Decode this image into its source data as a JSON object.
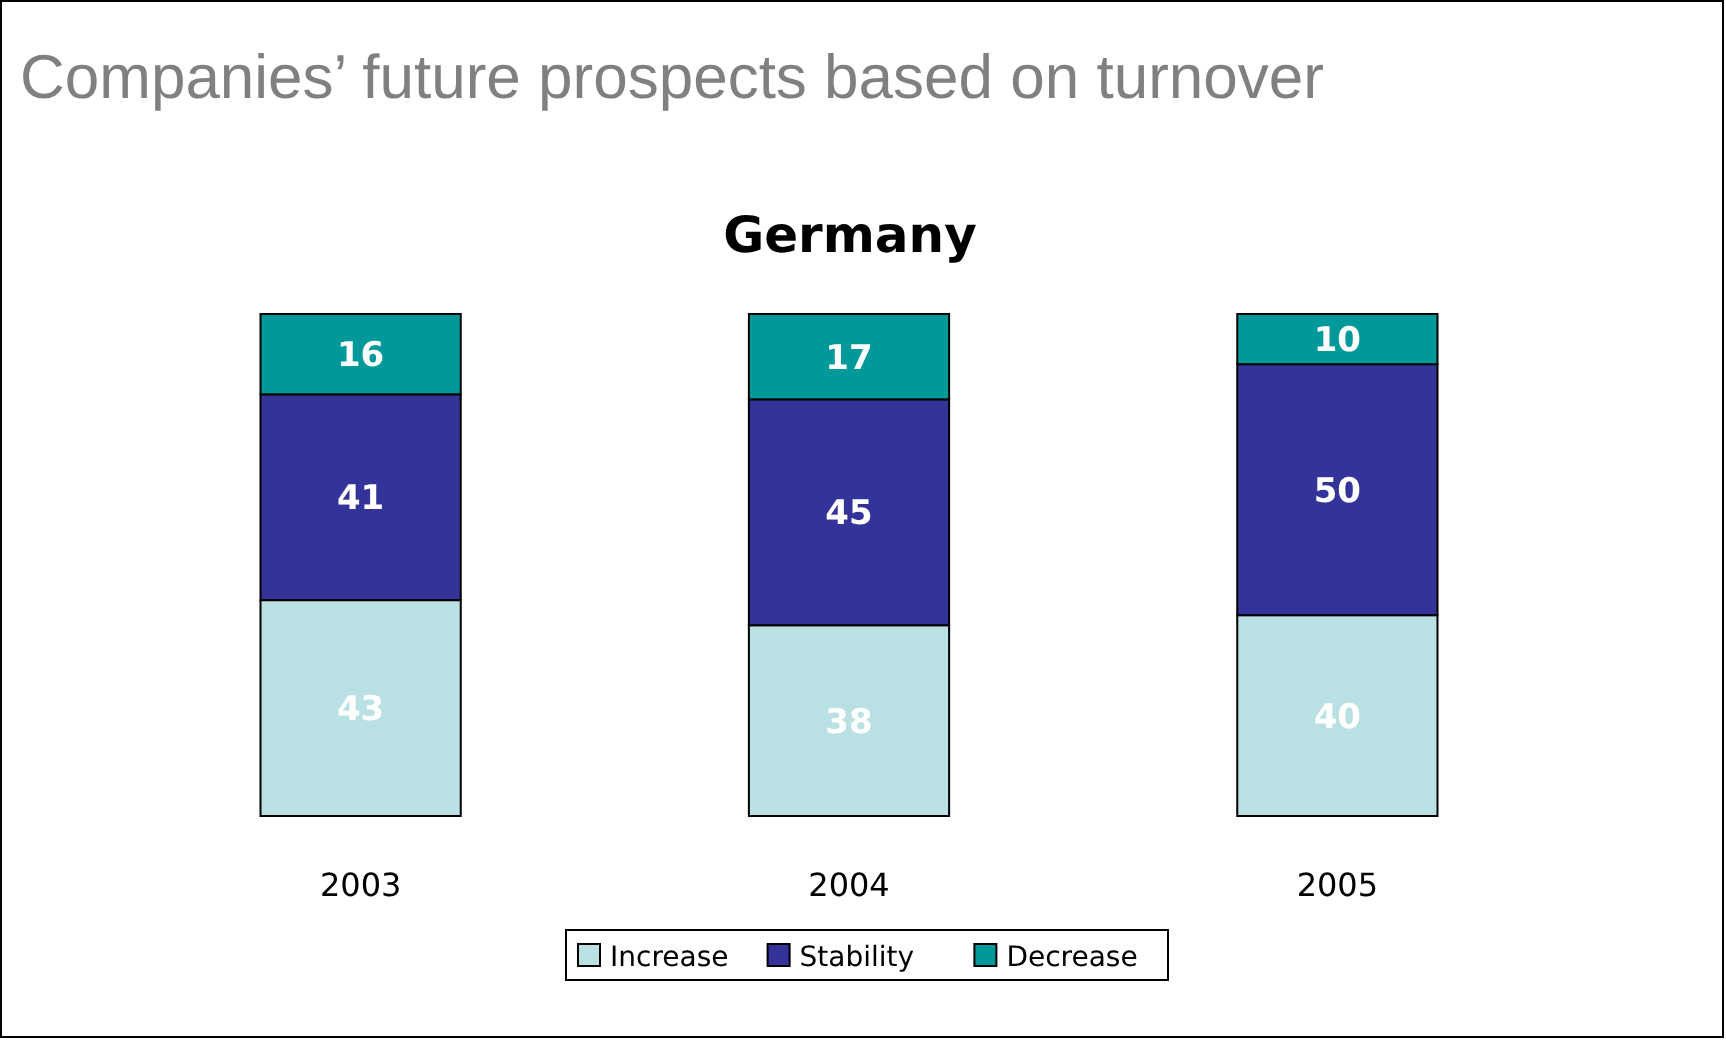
{
  "chart_data": {
    "type": "bar",
    "title": "Companies’ future prospects based on turnover",
    "subtitle": "Germany",
    "categories": [
      "2003",
      "2004",
      "2005"
    ],
    "stacked": true,
    "data_labels": true,
    "legend": "bottom",
    "series": [
      {
        "name": "Increase",
        "color": "#b9e1e4",
        "values": [
          43,
          38,
          40
        ]
      },
      {
        "name": "Stability",
        "color": "#333399",
        "values": [
          41,
          45,
          50
        ]
      },
      {
        "name": "Decrease",
        "color": "#009999",
        "values": [
          16,
          17,
          10
        ]
      }
    ]
  }
}
